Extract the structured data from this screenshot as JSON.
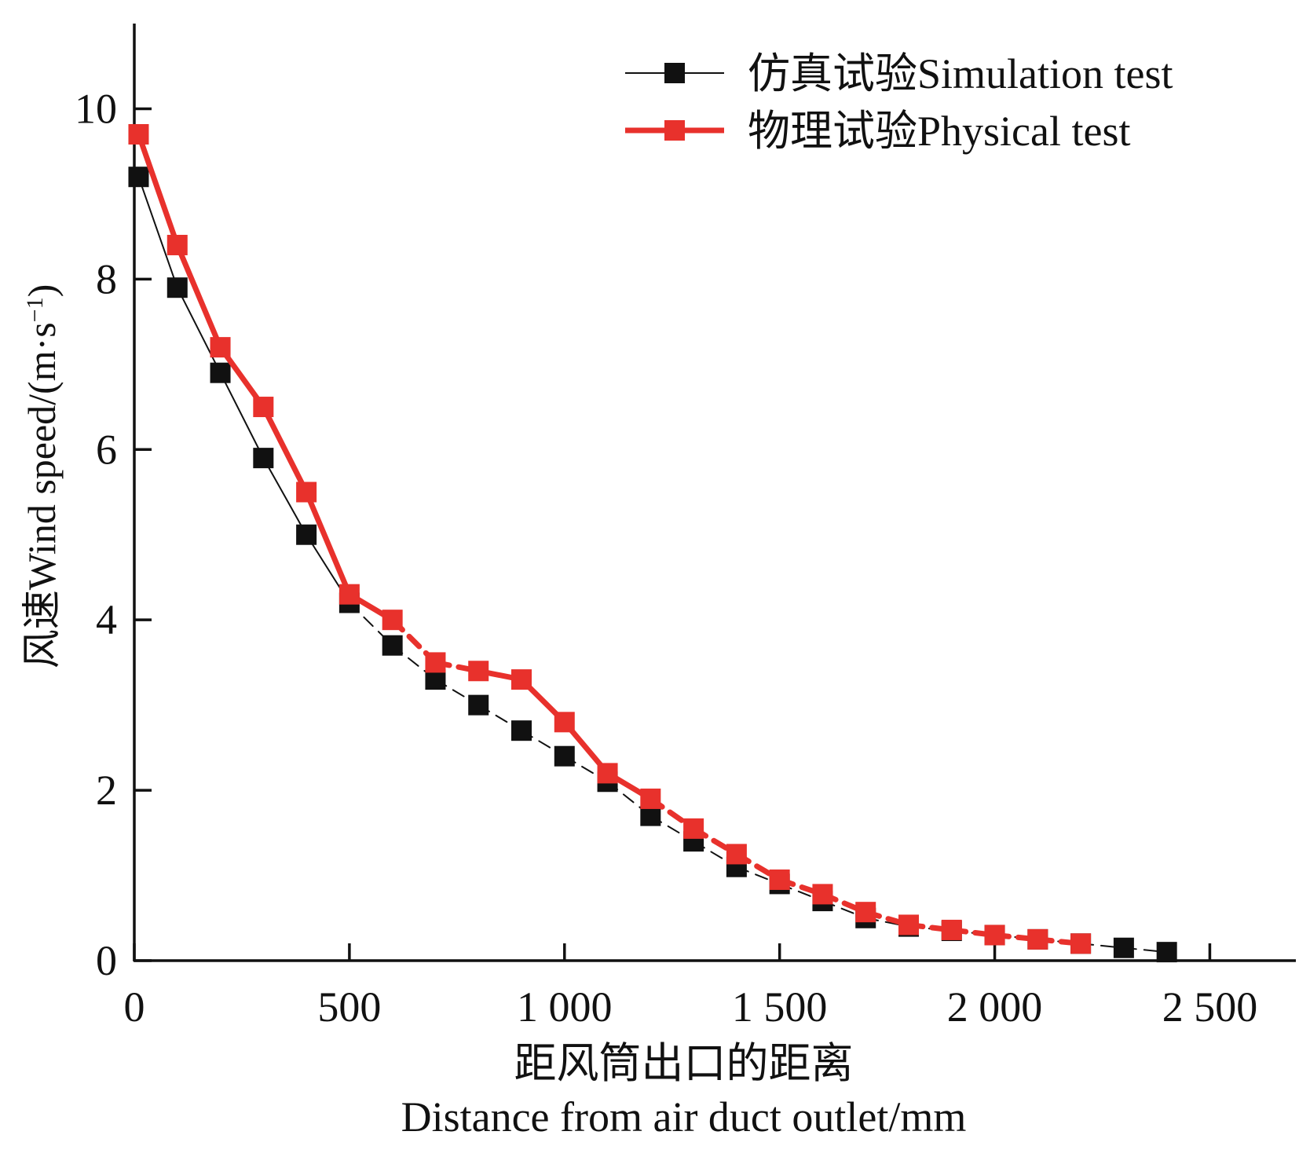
{
  "chart_data": {
    "type": "line",
    "title": "",
    "xlabel_cn": "距风筒出口的距离",
    "xlabel_en": "Distance from air duct outlet/mm",
    "ylabel_main": "风速Wind speed/(m·s",
    "ylabel_sup": "−1",
    "ylabel_close": ")",
    "xlim": [
      0,
      2700
    ],
    "ylim": [
      0,
      11
    ],
    "x_ticks": [
      0,
      500,
      1000,
      1500,
      2000,
      2500
    ],
    "x_tick_labels": [
      "0",
      "500",
      "1 000",
      "1 500",
      "2 000",
      "2 500"
    ],
    "y_ticks": [
      0,
      2,
      4,
      6,
      8,
      10
    ],
    "y_tick_labels": [
      "0",
      "2",
      "4",
      "6",
      "8",
      "10"
    ],
    "grid": false,
    "legend_position": "top-right",
    "series": [
      {
        "name": "仿真试验Simulation test",
        "color": "#111111",
        "line_style": "thin-solid",
        "marker": "square",
        "x": [
          10,
          100,
          200,
          300,
          400,
          500,
          600,
          700,
          800,
          900,
          1000,
          1100,
          1200,
          1300,
          1400,
          1500,
          1600,
          1700,
          1800,
          1900,
          2000,
          2100,
          2200,
          2300,
          2400
        ],
        "y": [
          9.2,
          7.9,
          6.9,
          5.9,
          5.0,
          4.2,
          3.7,
          3.3,
          3.0,
          2.7,
          2.4,
          2.1,
          1.7,
          1.4,
          1.1,
          0.9,
          0.7,
          0.5,
          0.4,
          0.35,
          0.3,
          0.25,
          0.2,
          0.15,
          0.1
        ]
      },
      {
        "name": "物理试验Physical test",
        "color": "#e8312c",
        "line_style": "thick-mixed",
        "marker": "square",
        "x": [
          10,
          100,
          200,
          300,
          400,
          500,
          600,
          700,
          800,
          900,
          1000,
          1100,
          1200,
          1300,
          1400,
          1500,
          1600,
          1700,
          1800,
          1900,
          2000,
          2100,
          2200
        ],
        "y": [
          9.7,
          8.4,
          7.2,
          6.5,
          5.5,
          4.3,
          4.0,
          3.5,
          3.4,
          3.3,
          2.8,
          2.2,
          1.9,
          1.55,
          1.25,
          0.95,
          0.78,
          0.57,
          0.42,
          0.36,
          0.3,
          0.25,
          0.2
        ],
        "segment_styles": [
          "solid",
          "solid",
          "solid",
          "solid",
          "solid",
          "solid",
          "dashed",
          "dashed",
          "solid",
          "solid",
          "solid",
          "solid",
          "dashed",
          "dashed",
          "dashed",
          "dashed",
          "dashed",
          "dashed",
          "dashed",
          "dashed",
          "dashed",
          "dashed"
        ]
      }
    ]
  }
}
